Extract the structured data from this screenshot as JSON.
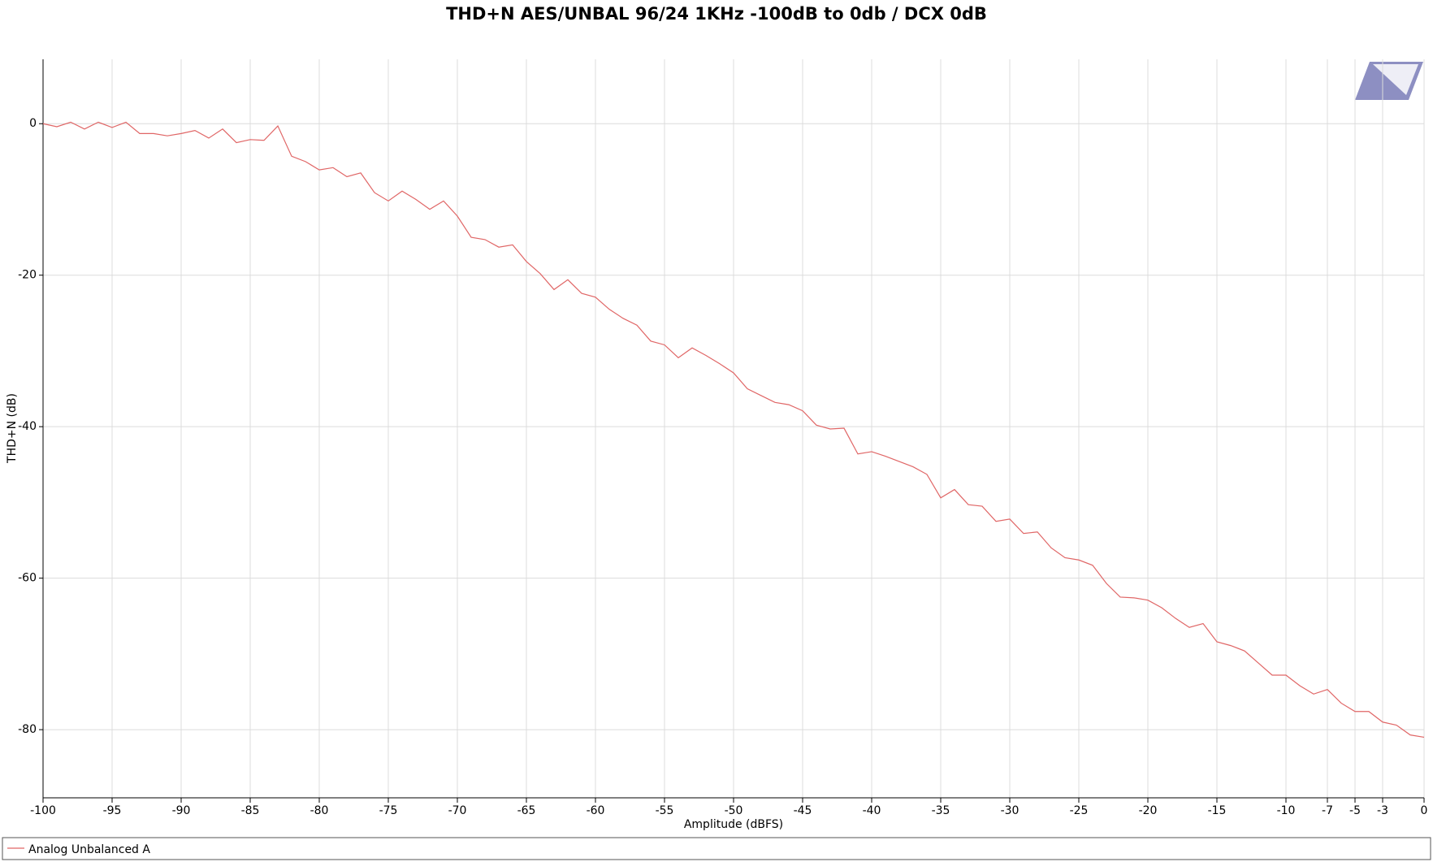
{
  "chart_data": {
    "type": "line",
    "title": "THD+N AES/UNBAL 96/24 1KHz -100dB to 0db / DCX 0dB",
    "x_label": "Amplitude (dBFS)",
    "y_label": "THD+N (dB)",
    "x": [
      -100,
      -99,
      -98,
      -97,
      -96,
      -95,
      -94,
      -93,
      -92,
      -91,
      -90,
      -89,
      -88,
      -87,
      -86,
      -85,
      -84,
      -83,
      -82,
      -81,
      -80,
      -79,
      -78,
      -77,
      -76,
      -75,
      -74,
      -73,
      -72,
      -71,
      -70,
      -69,
      -68,
      -67,
      -66,
      -65,
      -64,
      -63,
      -62,
      -61,
      -60,
      -59,
      -58,
      -57,
      -56,
      -55,
      -54,
      -53,
      -52,
      -51,
      -50,
      -49,
      -48,
      -47,
      -46,
      -45,
      -44,
      -43,
      -42,
      -41,
      -40,
      -39,
      -38,
      -37,
      -36,
      -35,
      -34,
      -33,
      -32,
      -31,
      -30,
      -29,
      -28,
      -27,
      -26,
      -25,
      -24,
      -23,
      -22,
      -21,
      -20,
      -19,
      -18,
      -17,
      -16,
      -15,
      -14,
      -13,
      -12,
      -11,
      -10,
      -9,
      -8,
      -7,
      -6,
      -5,
      -4,
      -3,
      -2,
      -1,
      0
    ],
    "series": [
      {
        "name": "Analog Unbalanced A",
        "color": "#e06666",
        "values": [
          0,
          -0.4,
          0.2,
          -0.7,
          0.2,
          -0.5,
          0.2,
          -1.3,
          -1.3,
          -1.6,
          -1.3,
          -0.9,
          -1.9,
          -0.7,
          -2.5,
          -2.1,
          -2.2,
          -0.3,
          -4.3,
          -5,
          -6.1,
          -5.8,
          -7,
          -6.5,
          -9.1,
          -10.2,
          -8.9,
          -10,
          -11.3,
          -10.2,
          -12.2,
          -15,
          -15.3,
          -16.3,
          -16,
          -18.2,
          -19.8,
          -21.9,
          -20.6,
          -22.4,
          -22.9,
          -24.5,
          -25.7,
          -26.6,
          -28.7,
          -29.2,
          -30.9,
          -29.6,
          -30.6,
          -31.7,
          -32.9,
          -35,
          -35.9,
          -36.8,
          -37.1,
          -37.9,
          -39.8,
          -40.3,
          -40.2,
          -43.6,
          -43.3,
          -43.9,
          -44.6,
          -45.3,
          -46.3,
          -49.4,
          -48.3,
          -50.3,
          -50.5,
          -52.5,
          -52.2,
          -54.1,
          -53.9,
          -56,
          -57.3,
          -57.6,
          -58.3,
          -60.7,
          -62.5,
          -62.6,
          -62.9,
          -63.9,
          -65.3,
          -66.5,
          -66,
          -68.4,
          -68.9,
          -69.6,
          -71.2,
          -72.8,
          -72.8,
          -74.2,
          -75.3,
          -74.7,
          -76.5,
          -77.6,
          -77.6,
          -79,
          -79.4,
          -80.7,
          -81
        ]
      }
    ],
    "xlim": [
      -100,
      0
    ],
    "ylim": [
      -89,
      8.5
    ],
    "xticks": [
      -100,
      -95,
      -90,
      -85,
      -80,
      -75,
      -70,
      -65,
      -60,
      -55,
      -50,
      -45,
      -40,
      -35,
      -30,
      -25,
      -20,
      -15,
      -10,
      -7,
      -5,
      -3,
      0
    ],
    "yticks": [
      0,
      -20,
      -40,
      -60,
      -80
    ],
    "grid": true
  }
}
